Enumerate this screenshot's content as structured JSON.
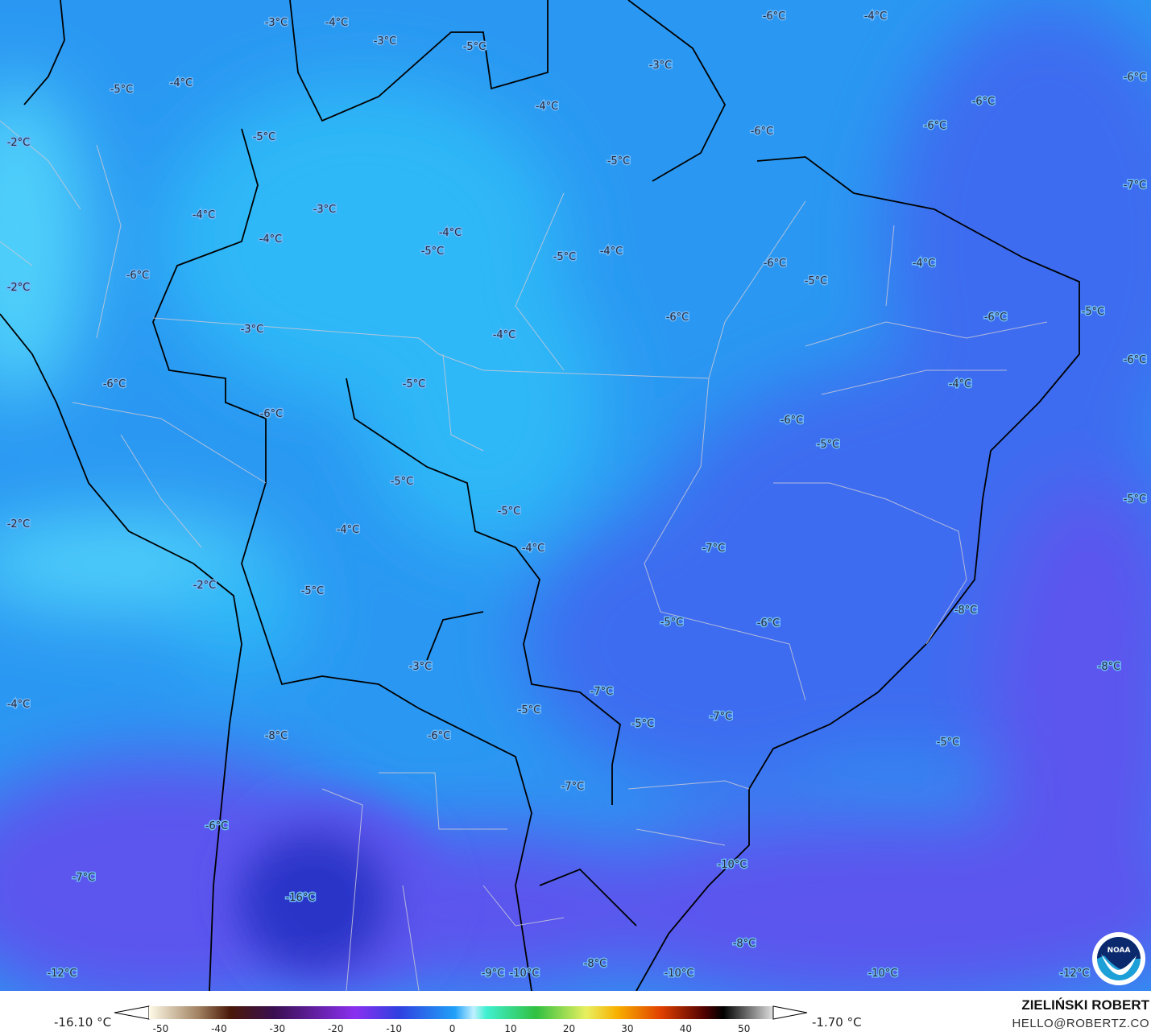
{
  "map": {
    "variable_unit": "°C",
    "colors": {
      "base": "#2a98f2",
      "light": "#2db8f7",
      "cyan": "#4fd0fa",
      "deep": "#3c6cf0",
      "purple": "#5b55ee",
      "core": "#2c36c8",
      "border_country": "#000000",
      "border_state": "#c8c8d8"
    },
    "labels": [
      "-3°C",
      "-4°C",
      "-3°C",
      "-5°C",
      "-6°C",
      "-4°C",
      "-6°C",
      "-3°C",
      "-5°C",
      "-4°C",
      "-4°C",
      "-6°C",
      "-6°C",
      "-6°C",
      "-2°C",
      "-5°C",
      "-5°C",
      "-7°C",
      "-3°C",
      "-4°C",
      "-4°C",
      "-4°C",
      "-5°C",
      "-5°C",
      "-4°C",
      "-6°C",
      "-4°C",
      "-6°C",
      "-2°C",
      "-5°C",
      "-5°C",
      "-6°C",
      "-6°C",
      "-3°C",
      "-4°C",
      "-6°C",
      "-6°C",
      "-5°C",
      "-4°C",
      "-6°C",
      "-6°C",
      "-5°C",
      "-5°C",
      "-5°C",
      "-5°C",
      "-2°C",
      "-4°C",
      "-4°C",
      "-7°C",
      "-2°C",
      "-5°C",
      "-8°C",
      "-5°C",
      "-6°C",
      "-3°C",
      "-8°C",
      "-7°C",
      "-4°C",
      "-5°C",
      "-7°C",
      "-5°C",
      "-8°C",
      "-6°C",
      "-5°C",
      "-7°C",
      "-6°C",
      "-10°C",
      "-7°C",
      "-16°C",
      "-8°C",
      "-9°C",
      "-10°C",
      "-10°C",
      "-10°C",
      "-12°C",
      "-12°C",
      "-8°C"
    ]
  },
  "legend": {
    "min": "-16.10 °C",
    "max": "-1.70 °C",
    "ticks": [
      "-50",
      "-40",
      "-30",
      "-20",
      "-10",
      "0",
      "10",
      "20",
      "30",
      "40",
      "50"
    ],
    "colorbar_range": [
      -52,
      55
    ]
  },
  "credit": {
    "author": "ZIELIŃSKI ROBERT",
    "email": "HELLO@ROBERTZ.CO",
    "logo": "NOAA"
  }
}
